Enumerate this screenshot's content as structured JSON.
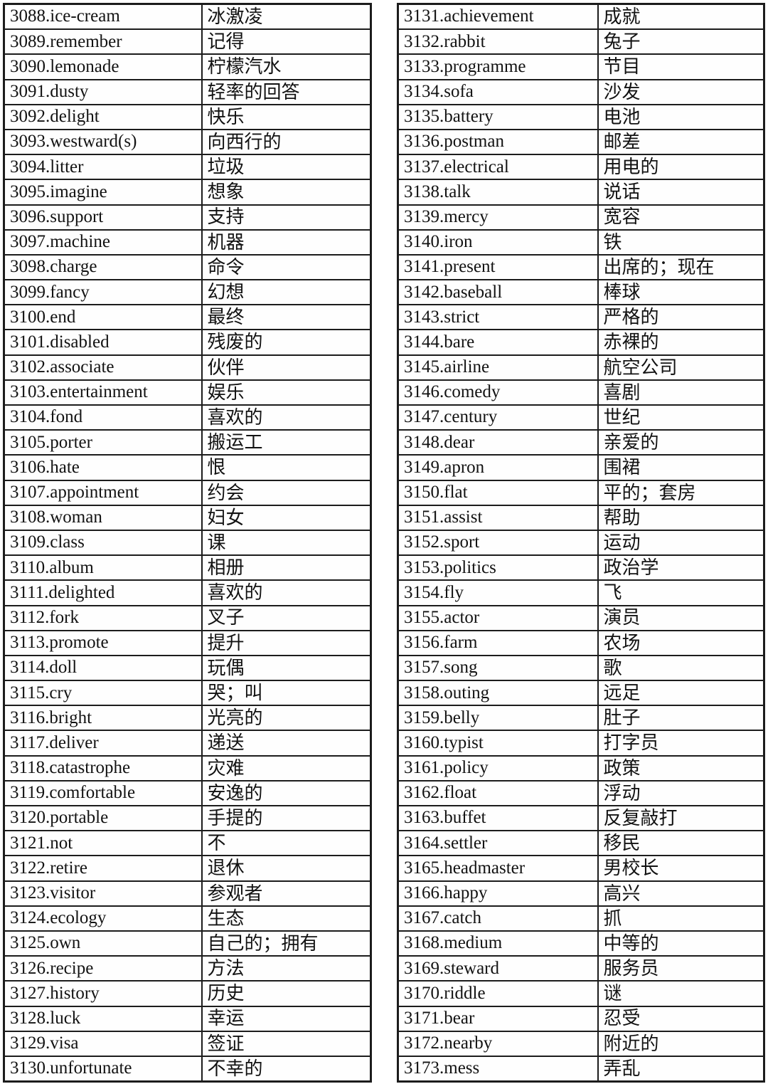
{
  "page": {
    "background_color": "#ffffff",
    "border_color": "#1c1c1c",
    "text_color": "#121212"
  },
  "tables": [
    {
      "name": "left",
      "rows": [
        {
          "en": "3088.ice-cream",
          "zh": "冰激凌"
        },
        {
          "en": "3089.remember",
          "zh": "记得"
        },
        {
          "en": "3090.lemonade",
          "zh": "柠檬汽水"
        },
        {
          "en": "3091.dusty",
          "zh": "轻率的回答"
        },
        {
          "en": "3092.delight",
          "zh": "快乐"
        },
        {
          "en": "3093.westward(s)",
          "zh": "向西行的"
        },
        {
          "en": "3094.litter",
          "zh": "垃圾"
        },
        {
          "en": "3095.imagine",
          "zh": "想象"
        },
        {
          "en": "3096.support",
          "zh": "支持"
        },
        {
          "en": "3097.machine",
          "zh": "机器"
        },
        {
          "en": "3098.charge",
          "zh": "命令"
        },
        {
          "en": "3099.fancy",
          "zh": "幻想"
        },
        {
          "en": "3100.end",
          "zh": "最终"
        },
        {
          "en": "3101.disabled",
          "zh": "残废的"
        },
        {
          "en": "3102.associate",
          "zh": "伙伴"
        },
        {
          "en": "3103.entertainment",
          "zh": "娱乐"
        },
        {
          "en": "3104.fond",
          "zh": "喜欢的"
        },
        {
          "en": "3105.porter",
          "zh": "搬运工"
        },
        {
          "en": "3106.hate",
          "zh": "恨"
        },
        {
          "en": "3107.appointment",
          "zh": "约会"
        },
        {
          "en": "3108.woman",
          "zh": "妇女"
        },
        {
          "en": "3109.class",
          "zh": "课"
        },
        {
          "en": "3110.album",
          "zh": "相册"
        },
        {
          "en": "3111.delighted",
          "zh": "喜欢的"
        },
        {
          "en": "3112.fork",
          "zh": "叉子"
        },
        {
          "en": "3113.promote",
          "zh": "提升"
        },
        {
          "en": "3114.doll",
          "zh": "玩偶"
        },
        {
          "en": "3115.cry",
          "zh": "哭；叫"
        },
        {
          "en": "3116.bright",
          "zh": "光亮的"
        },
        {
          "en": "3117.deliver",
          "zh": "递送"
        },
        {
          "en": "3118.catastrophe",
          "zh": "灾难"
        },
        {
          "en": "3119.comfortable",
          "zh": "安逸的"
        },
        {
          "en": "3120.portable",
          "zh": "手提的"
        },
        {
          "en": "3121.not",
          "zh": "不"
        },
        {
          "en": "3122.retire",
          "zh": "退休"
        },
        {
          "en": "3123.visitor",
          "zh": "参观者"
        },
        {
          "en": "3124.ecology",
          "zh": "生态"
        },
        {
          "en": "3125.own",
          "zh": "自己的；拥有"
        },
        {
          "en": "3126.recipe",
          "zh": "方法"
        },
        {
          "en": "3127.history",
          "zh": "历史"
        },
        {
          "en": "3128.luck",
          "zh": "幸运"
        },
        {
          "en": "3129.visa",
          "zh": "签证"
        },
        {
          "en": "3130.unfortunate",
          "zh": "不幸的"
        }
      ]
    },
    {
      "name": "right",
      "rows": [
        {
          "en": "3131.achievement",
          "zh": "成就"
        },
        {
          "en": "3132.rabbit",
          "zh": "兔子"
        },
        {
          "en": "3133.programme",
          "zh": "节目"
        },
        {
          "en": "3134.sofa",
          "zh": "沙发"
        },
        {
          "en": "3135.battery",
          "zh": "电池"
        },
        {
          "en": "3136.postman",
          "zh": "邮差"
        },
        {
          "en": "3137.electrical",
          "zh": "用电的"
        },
        {
          "en": "3138.talk",
          "zh": "说话"
        },
        {
          "en": "3139.mercy",
          "zh": "宽容"
        },
        {
          "en": "3140.iron",
          "zh": "铁"
        },
        {
          "en": "3141.present",
          "zh": "出席的；现在"
        },
        {
          "en": "3142.baseball",
          "zh": "棒球"
        },
        {
          "en": "3143.strict",
          "zh": "严格的"
        },
        {
          "en": "3144.bare",
          "zh": "赤裸的"
        },
        {
          "en": "3145.airline",
          "zh": "航空公司"
        },
        {
          "en": "3146.comedy",
          "zh": "喜剧"
        },
        {
          "en": "3147.century",
          "zh": "世纪"
        },
        {
          "en": "3148.dear",
          "zh": "亲爱的"
        },
        {
          "en": "3149.apron",
          "zh": "围裙"
        },
        {
          "en": "3150.flat",
          "zh": "平的；套房"
        },
        {
          "en": "3151.assist",
          "zh": "帮助"
        },
        {
          "en": "3152.sport",
          "zh": "运动"
        },
        {
          "en": "3153.politics",
          "zh": "政治学"
        },
        {
          "en": "3154.fly",
          "zh": "飞"
        },
        {
          "en": "3155.actor",
          "zh": "演员"
        },
        {
          "en": "3156.farm",
          "zh": "农场"
        },
        {
          "en": "3157.song",
          "zh": "歌"
        },
        {
          "en": "3158.outing",
          "zh": "远足"
        },
        {
          "en": "3159.belly",
          "zh": "肚子"
        },
        {
          "en": "3160.typist",
          "zh": "打字员"
        },
        {
          "en": "3161.policy",
          "zh": "政策"
        },
        {
          "en": "3162.float",
          "zh": "浮动"
        },
        {
          "en": "3163.buffet",
          "zh": "反复敲打"
        },
        {
          "en": "3164.settler",
          "zh": "移民"
        },
        {
          "en": "3165.headmaster",
          "zh": "男校长"
        },
        {
          "en": "3166.happy",
          "zh": "高兴"
        },
        {
          "en": "3167.catch",
          "zh": "抓"
        },
        {
          "en": "3168.medium",
          "zh": "中等的"
        },
        {
          "en": "3169.steward",
          "zh": "服务员"
        },
        {
          "en": "3170.riddle",
          "zh": "谜"
        },
        {
          "en": "3171.bear",
          "zh": "忍受"
        },
        {
          "en": "3172.nearby",
          "zh": "附近的"
        },
        {
          "en": "3173.mess",
          "zh": "弄乱"
        }
      ]
    }
  ]
}
